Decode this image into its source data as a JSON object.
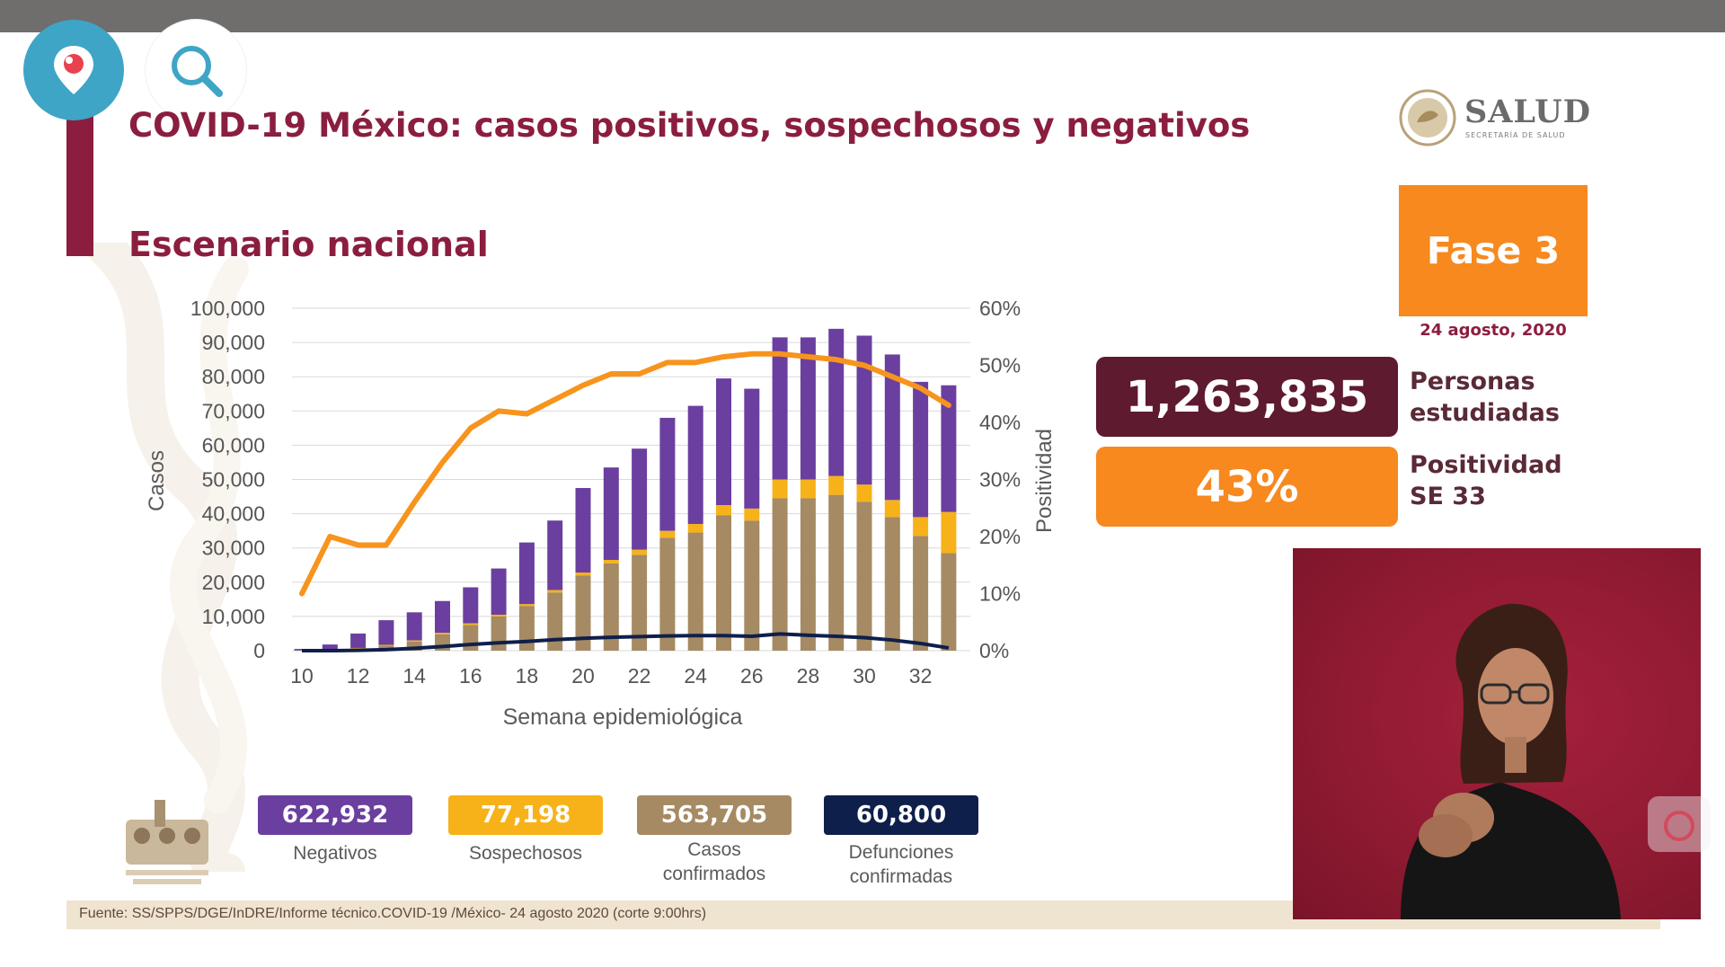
{
  "header": {
    "title": "COVID-19 México: casos positivos, sospechosos y negativos",
    "subtitle": "Escenario nacional"
  },
  "logo": {
    "name": "SALUD",
    "sub": "SECRETARÍA DE SALUD"
  },
  "overlay_icons": {
    "periscope": "periscope-icon",
    "search": "search-icon",
    "camera": "camera-icon"
  },
  "phase": {
    "label": "Fase 3",
    "date": "24 agosto, 2020"
  },
  "kpis": {
    "estudiadas": {
      "value": "1,263,835",
      "label_line1": "Personas",
      "label_line2": "estudiadas"
    },
    "positividad": {
      "value": "43%",
      "label_line1": "Positividad",
      "label_line2": "SE 33"
    }
  },
  "legend": [
    {
      "value": "622,932",
      "label_line1": "Negativos",
      "label_line2": "",
      "color": "#6b3fa0"
    },
    {
      "value": "77,198",
      "label_line1": "Sospechosos",
      "label_line2": "",
      "color": "#f7b21a"
    },
    {
      "value": "563,705",
      "label_line1": "Casos",
      "label_line2": "confirmados",
      "color": "#a58a63"
    },
    {
      "value": "60,800",
      "label_line1": "Defunciones",
      "label_line2": "confirmadas",
      "color": "#0f1f4b"
    }
  ],
  "source": "Fuente: SS/SPPS/DGE/InDRE/Informe técnico.COVID-19 /México- 24 agosto 2020 (corte 9:00hrs)",
  "colors": {
    "negativos": "#6b3fa0",
    "sospechosos": "#f7b21a",
    "confirmados": "#a58a63",
    "defunciones": "#0f1f4b",
    "positividad": "#f7941d",
    "title": "#8b1e3f"
  },
  "chart_data": {
    "type": "bar",
    "stacked": true,
    "xlabel": "Semana epidemiológica",
    "ylabel": "Casos",
    "y2label": "Positividad",
    "ylim": [
      0,
      100000
    ],
    "y2lim": [
      0,
      60
    ],
    "yticks": [
      "0",
      "10,000",
      "20,000",
      "30,000",
      "40,000",
      "50,000",
      "60,000",
      "70,000",
      "80,000",
      "90,000",
      "100,000"
    ],
    "y2ticks": [
      "0%",
      "10%",
      "20%",
      "30%",
      "40%",
      "50%",
      "60%"
    ],
    "xticks": [
      "10",
      "12",
      "14",
      "16",
      "18",
      "20",
      "22",
      "24",
      "26",
      "28",
      "30",
      "32"
    ],
    "x": [
      10,
      11,
      12,
      13,
      14,
      15,
      16,
      17,
      18,
      19,
      20,
      21,
      22,
      23,
      24,
      25,
      26,
      27,
      28,
      29,
      30,
      31,
      32,
      33
    ],
    "series": [
      {
        "name": "Casos confirmados",
        "role": "bar",
        "values": [
          100,
          300,
          700,
          1500,
          2700,
          4800,
          7500,
          10000,
          13000,
          17000,
          22000,
          25500,
          28000,
          33000,
          34500,
          39500,
          38000,
          44500,
          44500,
          45500,
          43500,
          39000,
          33500,
          28500
        ]
      },
      {
        "name": "Sospechosos",
        "role": "bar",
        "values": [
          0,
          100,
          100,
          200,
          300,
          400,
          500,
          500,
          600,
          700,
          800,
          1000,
          1500,
          2000,
          2500,
          3000,
          3500,
          5500,
          5500,
          5500,
          5000,
          5000,
          5500,
          12000
        ]
      },
      {
        "name": "Negativos",
        "role": "bar",
        "values": [
          400,
          1400,
          4200,
          7200,
          8200,
          9300,
          10500,
          13500,
          18000,
          20300,
          24700,
          27000,
          29500,
          33000,
          34500,
          37000,
          35000,
          41500,
          41500,
          43000,
          43500,
          42500,
          39500,
          37000
        ]
      },
      {
        "name": "Defunciones",
        "role": "line",
        "values": [
          0,
          0,
          100,
          300,
          700,
          1200,
          1800,
          2300,
          2700,
          3200,
          3600,
          3900,
          4100,
          4300,
          4400,
          4400,
          4200,
          4900,
          4500,
          4200,
          3800,
          3100,
          2100,
          800
        ]
      },
      {
        "name": "Positividad",
        "role": "line",
        "axis": "y2",
        "values": [
          10,
          20,
          18.5,
          18.5,
          26,
          33,
          39,
          42,
          41.5,
          44,
          46.5,
          48.5,
          48.5,
          50.5,
          50.5,
          51.5,
          52,
          52,
          51.5,
          51,
          50,
          48,
          46,
          43
        ]
      }
    ]
  }
}
